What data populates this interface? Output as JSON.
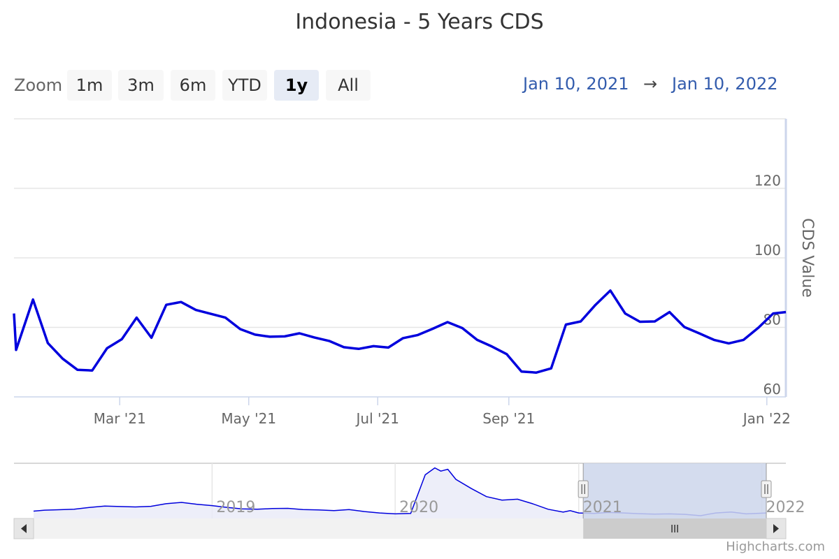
{
  "chart": {
    "title": "Indonesia - 5 Years CDS",
    "ylabel": "CDS Value",
    "credits": "Highcharts.com"
  },
  "zoom": {
    "label": "Zoom",
    "buttons": [
      "1m",
      "3m",
      "6m",
      "YTD",
      "1y",
      "All"
    ],
    "active": "1y"
  },
  "range": {
    "from": "Jan 10, 2021",
    "arrow": "→",
    "to": "Jan 10, 2022"
  },
  "colors": {
    "series": "#0000dd",
    "grid": "#e6e6e6",
    "navigator_mask": "#ccd6eb",
    "scrollbar": "#cccccc"
  },
  "chart_data": {
    "type": "line",
    "title": "Indonesia - 5 Years CDS",
    "ylabel": "CDS Value",
    "y_ticks": [
      60,
      80,
      100,
      120
    ],
    "ylim": [
      60,
      140
    ],
    "x_ticks": [
      "Mar '21",
      "May '21",
      "Jul '21",
      "Sep '21",
      "Jan '22"
    ],
    "x_range": [
      "2021-01-10",
      "2022-01-10"
    ],
    "series": [
      {
        "values": [
          [
            "2021-01-10",
            84
          ],
          [
            "2021-01-11",
            73.5
          ],
          [
            "2021-01-19",
            88
          ],
          [
            "2021-01-26",
            75.5
          ],
          [
            "2021-02-02",
            71
          ],
          [
            "2021-02-09",
            67.8
          ],
          [
            "2021-02-16",
            67.6
          ],
          [
            "2021-02-23",
            74
          ],
          [
            "2021-03-02",
            76.6
          ],
          [
            "2021-03-09",
            82.8
          ],
          [
            "2021-03-16",
            77
          ],
          [
            "2021-03-23",
            86.5
          ],
          [
            "2021-03-30",
            87.3
          ],
          [
            "2021-04-06",
            85
          ],
          [
            "2021-04-20",
            82.8
          ],
          [
            "2021-04-27",
            79.5
          ],
          [
            "2021-05-04",
            77.9
          ],
          [
            "2021-05-11",
            77.3
          ],
          [
            "2021-05-18",
            77.4
          ],
          [
            "2021-05-25",
            78.3
          ],
          [
            "2021-06-01",
            77.1
          ],
          [
            "2021-06-08",
            76.1
          ],
          [
            "2021-06-15",
            74.3
          ],
          [
            "2021-06-22",
            73.8
          ],
          [
            "2021-06-29",
            74.6
          ],
          [
            "2021-07-06",
            74.2
          ],
          [
            "2021-07-13",
            76.9
          ],
          [
            "2021-07-20",
            77.8
          ],
          [
            "2021-07-27",
            79.6
          ],
          [
            "2021-08-03",
            81.5
          ],
          [
            "2021-08-10",
            79.8
          ],
          [
            "2021-08-17",
            76.4
          ],
          [
            "2021-08-24",
            74.5
          ],
          [
            "2021-08-31",
            72.3
          ],
          [
            "2021-09-07",
            67.3
          ],
          [
            "2021-09-14",
            67
          ],
          [
            "2021-09-21",
            68.2
          ],
          [
            "2021-09-28",
            80.8
          ],
          [
            "2021-10-05",
            81.7
          ],
          [
            "2021-10-12",
            86.5
          ],
          [
            "2021-10-19",
            90.6
          ],
          [
            "2021-10-26",
            84
          ],
          [
            "2021-11-02",
            81.6
          ],
          [
            "2021-11-09",
            81.7
          ],
          [
            "2021-11-16",
            84.4
          ],
          [
            "2021-11-23",
            80.1
          ],
          [
            "2021-11-30",
            78.3
          ],
          [
            "2021-12-07",
            76.4
          ],
          [
            "2021-12-14",
            75.4
          ],
          [
            "2021-12-21",
            76.4
          ],
          [
            "2021-12-28",
            79.9
          ],
          [
            "2022-01-04",
            84
          ],
          [
            "2022-01-10",
            84.4
          ]
        ]
      }
    ]
  },
  "navigator": {
    "year_labels": [
      "2019",
      "2020",
      "2021",
      "2022"
    ],
    "selection": [
      "2021-01-10",
      "2022-01-10"
    ],
    "series": [
      [
        "2018-01-10",
        92
      ],
      [
        "2018-02-01",
        96
      ],
      [
        "2018-03-01",
        98
      ],
      [
        "2018-04-01",
        100
      ],
      [
        "2018-05-01",
        108
      ],
      [
        "2018-06-01",
        114
      ],
      [
        "2018-07-01",
        112
      ],
      [
        "2018-08-01",
        110
      ],
      [
        "2018-09-01",
        113
      ],
      [
        "2018-10-01",
        124
      ],
      [
        "2018-11-01",
        130
      ],
      [
        "2018-12-01",
        122
      ],
      [
        "2019-01-01",
        116
      ],
      [
        "2019-02-01",
        108
      ],
      [
        "2019-03-01",
        102
      ],
      [
        "2019-04-01",
        100
      ],
      [
        "2019-05-01",
        103
      ],
      [
        "2019-06-01",
        104
      ],
      [
        "2019-07-01",
        99
      ],
      [
        "2019-08-01",
        97
      ],
      [
        "2019-09-01",
        94
      ],
      [
        "2019-10-01",
        99
      ],
      [
        "2019-11-01",
        90
      ],
      [
        "2019-12-01",
        84
      ],
      [
        "2020-01-01",
        80
      ],
      [
        "2020-02-01",
        82
      ],
      [
        "2020-03-01",
        250
      ],
      [
        "2020-03-20",
        280
      ],
      [
        "2020-04-01",
        266
      ],
      [
        "2020-04-15",
        274
      ],
      [
        "2020-05-01",
        230
      ],
      [
        "2020-06-01",
        190
      ],
      [
        "2020-07-01",
        155
      ],
      [
        "2020-08-01",
        140
      ],
      [
        "2020-09-01",
        144
      ],
      [
        "2020-10-01",
        124
      ],
      [
        "2020-11-01",
        100
      ],
      [
        "2020-12-01",
        88
      ],
      [
        "2020-12-15",
        94
      ],
      [
        "2021-01-01",
        84
      ],
      [
        "2021-02-01",
        82
      ],
      [
        "2021-03-01",
        86
      ],
      [
        "2021-04-01",
        84
      ],
      [
        "2021-05-01",
        81
      ],
      [
        "2021-06-01",
        79
      ],
      [
        "2021-07-01",
        80
      ],
      [
        "2021-08-01",
        78
      ],
      [
        "2021-09-01",
        72
      ],
      [
        "2021-10-01",
        84
      ],
      [
        "2021-11-01",
        88
      ],
      [
        "2021-12-01",
        80
      ],
      [
        "2022-01-10",
        84
      ]
    ],
    "ylim": [
      60,
      300
    ]
  }
}
